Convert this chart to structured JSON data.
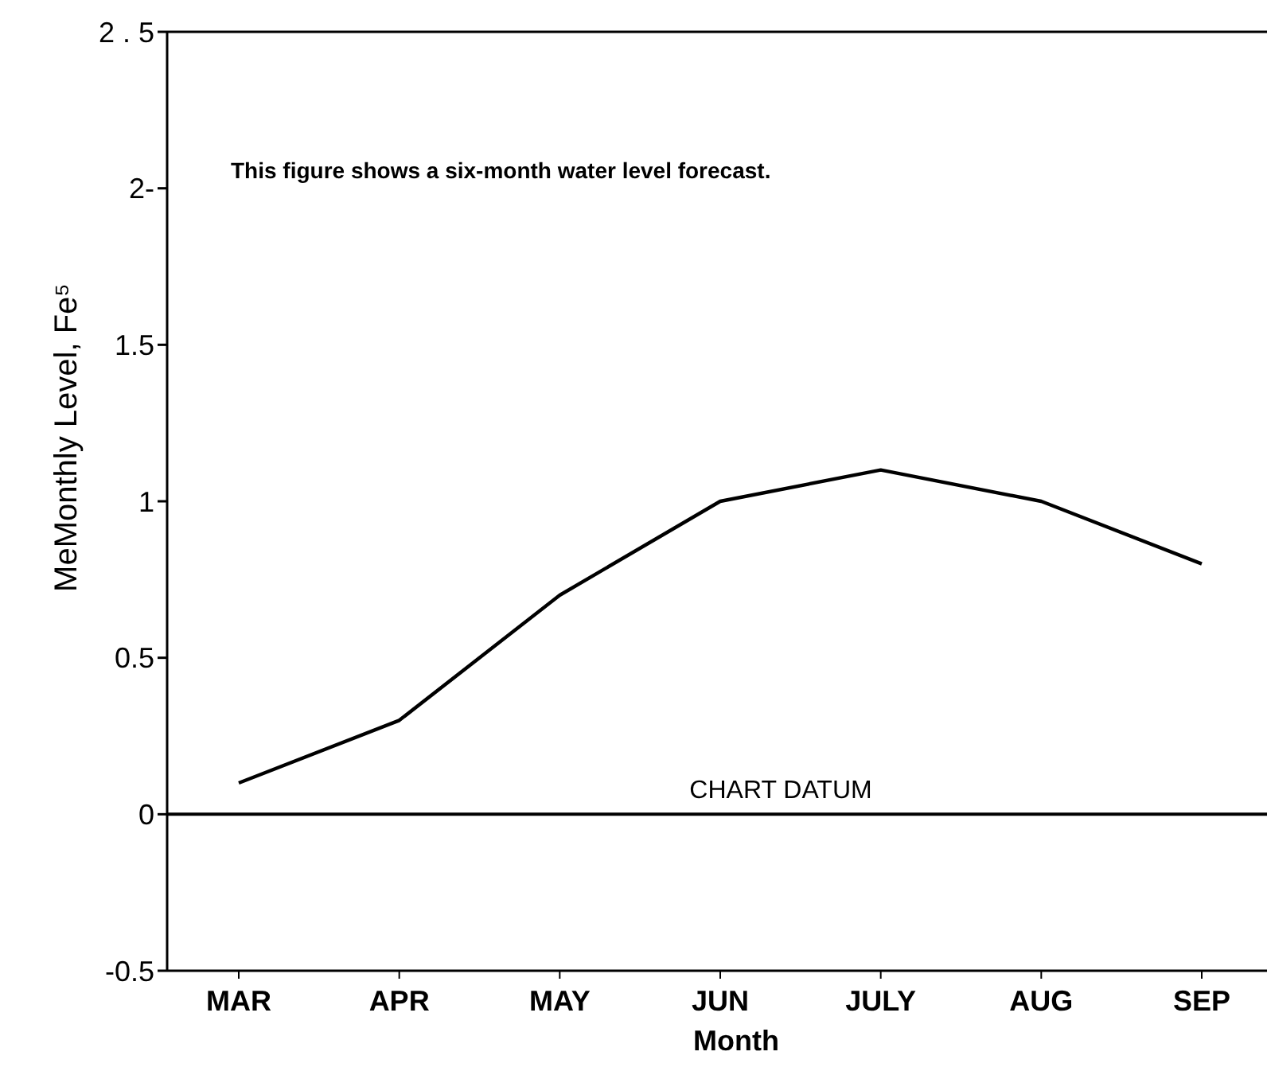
{
  "chart_data": {
    "type": "line",
    "xlabel": "Month",
    "ylabel": "MeMonthly Level, Fe⁵",
    "categories": [
      "MAR",
      "APR",
      "MAY",
      "JUN",
      "JULY",
      "AUG",
      "SEP"
    ],
    "series": [
      {
        "color": "#000000",
        "values": [
          0.1,
          0.3,
          0.7,
          1.0,
          1.1,
          1.0,
          0.8
        ]
      }
    ],
    "ylim": [
      -0.5,
      2.5
    ],
    "yticks": [
      {
        "value": 2.5,
        "label": "2 . 5"
      },
      {
        "value": 2,
        "label": "2-"
      },
      1.5,
      1,
      0.5,
      0,
      -0.5
    ],
    "ref_lines": [
      {
        "axis": "y",
        "value": 0,
        "label": "CHART DATUM",
        "color": "#000000"
      }
    ],
    "annotations": [
      "This figure shows a six-month water level forecast."
    ],
    "grid": false,
    "marker": "none",
    "line_style": "solid"
  }
}
